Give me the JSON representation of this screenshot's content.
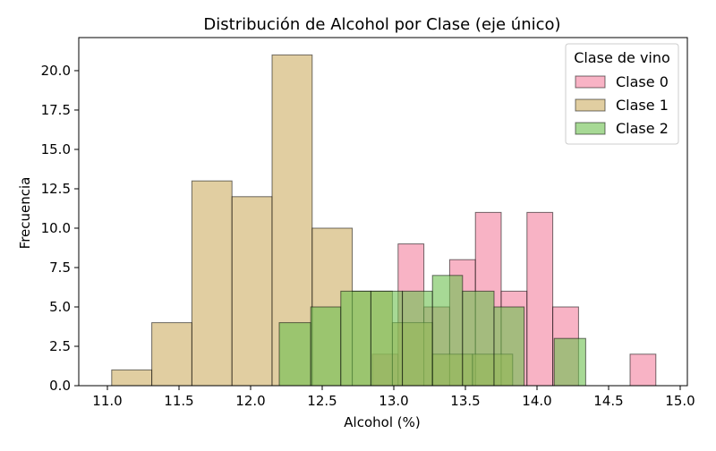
{
  "chart_data": {
    "type": "bar",
    "title": "Distribución de Alcohol por Clase (eje único)",
    "xlabel": "Alcohol (%)",
    "ylabel": "Frecuencia",
    "xlim": [
      10.8,
      15.05
    ],
    "ylim": [
      0,
      22.1
    ],
    "xticks": [
      "11.0",
      "11.5",
      "12.0",
      "12.5",
      "13.0",
      "13.5",
      "14.0",
      "14.5",
      "15.0"
    ],
    "yticks": [
      "0.0",
      "2.5",
      "5.0",
      "7.5",
      "10.0",
      "12.5",
      "15.0",
      "17.5",
      "20.0"
    ],
    "grid": false,
    "legend": {
      "title": "Clase de vino",
      "position": "top-right"
    },
    "series": [
      {
        "name": "Clase 0",
        "color": "#f4819e",
        "bins": [
          {
            "x0": 12.85,
            "x1": 13.03,
            "count": 2
          },
          {
            "x0": 13.03,
            "x1": 13.21,
            "count": 9
          },
          {
            "x0": 13.21,
            "x1": 13.39,
            "count": 5
          },
          {
            "x0": 13.39,
            "x1": 13.57,
            "count": 8
          },
          {
            "x0": 13.57,
            "x1": 13.75,
            "count": 11
          },
          {
            "x0": 13.75,
            "x1": 13.93,
            "count": 6
          },
          {
            "x0": 13.93,
            "x1": 14.11,
            "count": 11
          },
          {
            "x0": 14.11,
            "x1": 14.29,
            "count": 5
          },
          {
            "x0": 14.29,
            "x1": 14.47,
            "count": 0
          },
          {
            "x0": 14.47,
            "x1": 14.65,
            "count": 0
          },
          {
            "x0": 14.65,
            "x1": 14.83,
            "count": 2
          }
        ]
      },
      {
        "name": "Clase 1",
        "color": "#cdae63",
        "bins": [
          {
            "x0": 11.03,
            "x1": 11.31,
            "count": 1
          },
          {
            "x0": 11.31,
            "x1": 11.59,
            "count": 4
          },
          {
            "x0": 11.59,
            "x1": 11.87,
            "count": 13
          },
          {
            "x0": 11.87,
            "x1": 12.15,
            "count": 12
          },
          {
            "x0": 12.15,
            "x1": 12.43,
            "count": 21
          },
          {
            "x0": 12.43,
            "x1": 12.71,
            "count": 10
          },
          {
            "x0": 12.71,
            "x1": 12.99,
            "count": 6
          },
          {
            "x0": 12.99,
            "x1": 13.27,
            "count": 4
          },
          {
            "x0": 13.27,
            "x1": 13.55,
            "count": 2
          },
          {
            "x0": 13.55,
            "x1": 13.83,
            "count": 2
          }
        ]
      },
      {
        "name": "Clase 2",
        "color": "#6dc04f",
        "bins": [
          {
            "x0": 12.2,
            "x1": 12.42,
            "count": 4
          },
          {
            "x0": 12.42,
            "x1": 12.63,
            "count": 5
          },
          {
            "x0": 12.63,
            "x1": 12.84,
            "count": 6
          },
          {
            "x0": 12.84,
            "x1": 13.06,
            "count": 6
          },
          {
            "x0": 13.06,
            "x1": 13.27,
            "count": 6
          },
          {
            "x0": 13.27,
            "x1": 13.48,
            "count": 7
          },
          {
            "x0": 13.48,
            "x1": 13.7,
            "count": 6
          },
          {
            "x0": 13.7,
            "x1": 13.91,
            "count": 5
          },
          {
            "x0": 13.91,
            "x1": 14.12,
            "count": 0
          },
          {
            "x0": 14.12,
            "x1": 14.34,
            "count": 3
          }
        ]
      }
    ]
  }
}
